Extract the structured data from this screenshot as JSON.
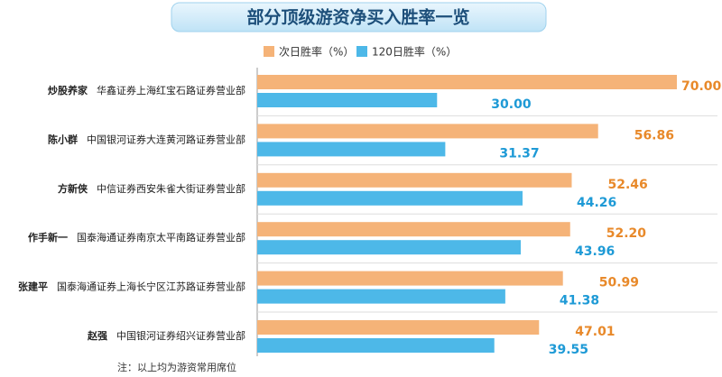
{
  "chart_data": {
    "type": "bar",
    "orientation": "horizontal",
    "title": "部分顶级游资净买入胜率一览",
    "categories": [
      "炒股养家",
      "陈小群",
      "方新侠",
      "作手新一",
      "张建平",
      "赵强"
    ],
    "branches": [
      "华鑫证券上海红宝石路证券营业部",
      "中国银河证券大连黄河路证券营业部",
      "中信证券西安朱雀大街证券营业部",
      "国泰海通证券南京太平南路证券营业部",
      "国泰海通证券上海长宁区江苏路证券营业部",
      "中国银河证券绍兴证券营业部"
    ],
    "series": [
      {
        "name": "次日胜率（%）",
        "color": "#f5b378",
        "label_color": "#e8892a",
        "values": [
          70.0,
          56.86,
          52.46,
          52.2,
          50.99,
          47.01
        ],
        "value_labels": [
          "70.00",
          "56.86",
          "52.46",
          "52.20",
          "50.99",
          "47.01"
        ]
      },
      {
        "name": "120日胜率（%）",
        "color": "#4db8e8",
        "label_color": "#1e9ad6",
        "values": [
          30.0,
          31.37,
          44.26,
          43.96,
          41.38,
          39.55
        ],
        "value_labels": [
          "30.00",
          "31.37",
          "44.26",
          "43.96",
          "41.38",
          "39.55"
        ]
      }
    ],
    "note": "注：以上均为游资常用席位"
  }
}
